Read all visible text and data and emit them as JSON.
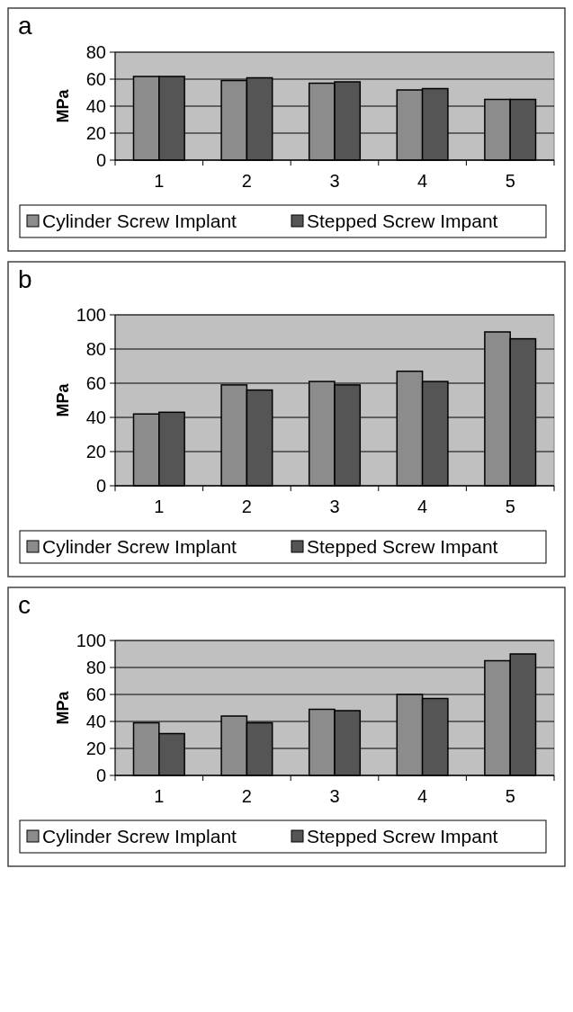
{
  "chart_data": [
    {
      "type": "bar",
      "title": "a",
      "ylabel": "MPa",
      "categories": [
        "1",
        "2",
        "3",
        "4",
        "5"
      ],
      "ylim": [
        0,
        80
      ],
      "yticks": [
        0,
        20,
        40,
        60,
        80
      ],
      "grid": "y",
      "legend": "bottom",
      "series": [
        {
          "name": "Cylinder Screw Implant",
          "color": "#8c8c8c",
          "values": [
            62,
            59,
            57,
            52,
            45
          ]
        },
        {
          "name": "Stepped Screw Impant",
          "color": "#555555",
          "values": [
            62,
            61,
            58,
            53,
            45
          ]
        }
      ]
    },
    {
      "type": "bar",
      "title": "b",
      "ylabel": "MPa",
      "categories": [
        "1",
        "2",
        "3",
        "4",
        "5"
      ],
      "ylim": [
        0,
        100
      ],
      "yticks": [
        0,
        20,
        40,
        60,
        80,
        100
      ],
      "grid": "y",
      "legend": "bottom",
      "series": [
        {
          "name": "Cylinder Screw Implant",
          "color": "#8c8c8c",
          "values": [
            42,
            59,
            61,
            67,
            90
          ]
        },
        {
          "name": "Stepped Screw Impant",
          "color": "#555555",
          "values": [
            43,
            56,
            59,
            61,
            86
          ]
        }
      ]
    },
    {
      "type": "bar",
      "title": "c",
      "ylabel": "MPa",
      "categories": [
        "1",
        "2",
        "3",
        "4",
        "5"
      ],
      "ylim": [
        0,
        100
      ],
      "yticks": [
        0,
        20,
        40,
        60,
        80,
        100
      ],
      "grid": "y",
      "legend": "bottom",
      "series": [
        {
          "name": "Cylinder Screw Implant",
          "color": "#8c8c8c",
          "values": [
            39,
            44,
            49,
            60,
            85
          ]
        },
        {
          "name": "Stepped Screw Impant",
          "color": "#555555",
          "values": [
            31,
            39,
            48,
            57,
            90
          ]
        }
      ]
    }
  ]
}
